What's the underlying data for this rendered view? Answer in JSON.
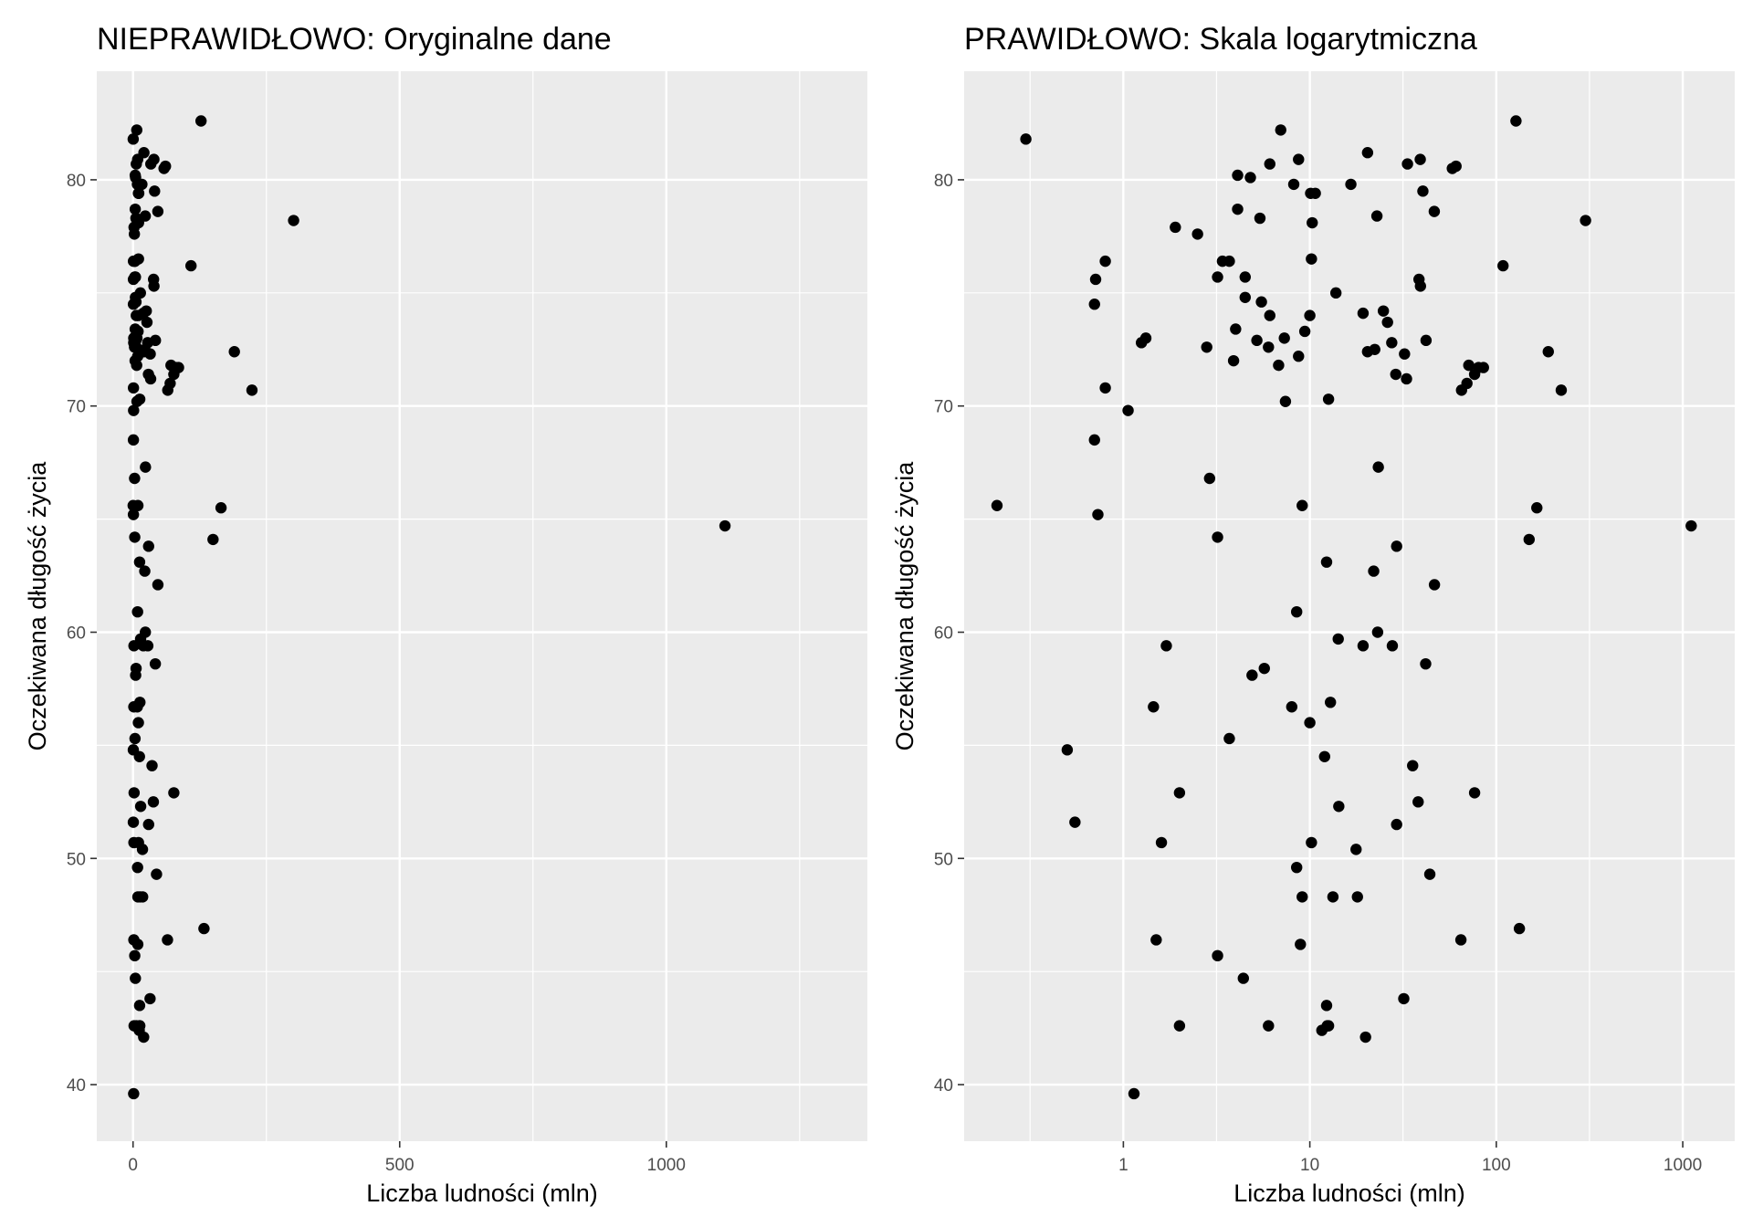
{
  "figure": {
    "charts": [
      {
        "title": "NIEPRAWIDŁOWO: Oryginalne dane",
        "xlabel": "Liczba ludności (mln)",
        "ylabel": "Oczekiwana długość życia",
        "xscale": "linear",
        "xlim": [
          -68,
          1377
        ],
        "ylim": [
          37.5,
          84.8
        ],
        "xticks": [
          0,
          500,
          1000
        ],
        "xtick_labels": [
          "0",
          "500",
          "1000"
        ],
        "xminor": [
          250,
          750,
          1250
        ],
        "yticks": [
          40,
          50,
          60,
          70,
          80
        ],
        "ytick_labels": [
          "40",
          "50",
          "60",
          "70",
          "80"
        ],
        "yminor": [
          45,
          55,
          65,
          75
        ]
      },
      {
        "title": "PRAWIDŁOWO: Skala logarytmiczna",
        "xlabel": "Liczba ludności (mln)",
        "ylabel": "Oczekiwana długość życia",
        "xscale": "log10",
        "xlim": [
          0.14,
          1900
        ],
        "ylim": [
          37.5,
          84.8
        ],
        "xticks": [
          1,
          10,
          100,
          1000
        ],
        "xtick_labels": [
          "1",
          "10",
          "100",
          "1000"
        ],
        "xminor": [
          0.316,
          3.16,
          31.6,
          316
        ],
        "yticks": [
          40,
          50,
          60,
          70,
          80
        ],
        "ytick_labels": [
          "40",
          "50",
          "60",
          "70",
          "80"
        ],
        "yminor": [
          45,
          55,
          65,
          75
        ]
      }
    ]
  },
  "chart_data": {
    "type": "scatter",
    "series": [
      {
        "name": "countries",
        "points": [
          [
            0.3,
            81.8
          ],
          [
            6.98,
            82.2
          ],
          [
            1.32,
            73.0
          ],
          [
            1110,
            64.7
          ],
          [
            12.4,
            42.6
          ],
          [
            1.14,
            39.6
          ],
          [
            6.1,
            80.7
          ],
          [
            0.21,
            65.6
          ],
          [
            20.4,
            81.2
          ],
          [
            8.2,
            79.8
          ],
          [
            0.71,
            75.6
          ],
          [
            4.1,
            80.2
          ],
          [
            8.7,
            80.9
          ],
          [
            33.4,
            80.7
          ],
          [
            39.1,
            80.9
          ],
          [
            58.1,
            80.5
          ],
          [
            60.8,
            80.6
          ],
          [
            10.7,
            79.4
          ],
          [
            16.6,
            79.8
          ],
          [
            127.5,
            82.6
          ],
          [
            301.1,
            78.2
          ],
          [
            4.1,
            78.7
          ],
          [
            5.4,
            78.3
          ],
          [
            10.3,
            78.1
          ],
          [
            46.5,
            78.6
          ],
          [
            22.9,
            78.4
          ],
          [
            10.1,
            79.4
          ],
          [
            1.9,
            77.9
          ],
          [
            40.4,
            79.5
          ],
          [
            108.7,
            76.2
          ],
          [
            3.4,
            76.4
          ],
          [
            10.2,
            76.5
          ],
          [
            4.5,
            75.7
          ],
          [
            4.8,
            80.1
          ],
          [
            2.5,
            77.6
          ],
          [
            0.8,
            76.4
          ],
          [
            3.2,
            75.7
          ],
          [
            3.7,
            76.4
          ],
          [
            39.2,
            75.3
          ],
          [
            38.5,
            75.6
          ],
          [
            0.7,
            74.5
          ],
          [
            4.5,
            74.8
          ],
          [
            5.5,
            74.6
          ],
          [
            10.0,
            74.0
          ],
          [
            13.8,
            75.0
          ],
          [
            24.8,
            74.2
          ],
          [
            26.1,
            73.7
          ],
          [
            7.3,
            73.0
          ],
          [
            4.0,
            73.4
          ],
          [
            9.4,
            73.3
          ],
          [
            6.1,
            74.0
          ],
          [
            19.3,
            74.1
          ],
          [
            2.8,
            72.6
          ],
          [
            1.25,
            72.8
          ],
          [
            42.0,
            72.9
          ],
          [
            71.2,
            71.8
          ],
          [
            190,
            72.4
          ],
          [
            5.2,
            72.9
          ],
          [
            6.0,
            72.6
          ],
          [
            8.7,
            72.2
          ],
          [
            22.3,
            72.5
          ],
          [
            32.2,
            72.3
          ],
          [
            80.3,
            71.7
          ],
          [
            85.3,
            71.7
          ],
          [
            65.1,
            70.7
          ],
          [
            69.6,
            71.0
          ],
          [
            28.9,
            71.4
          ],
          [
            33.0,
            71.2
          ],
          [
            76.5,
            71.4
          ],
          [
            223,
            70.7
          ],
          [
            20.4,
            72.4
          ],
          [
            27.5,
            72.8
          ],
          [
            3.9,
            72.0
          ],
          [
            6.8,
            71.8
          ],
          [
            12.6,
            70.3
          ],
          [
            7.4,
            70.2
          ],
          [
            1.06,
            69.8
          ],
          [
            165,
            65.5
          ],
          [
            150,
            64.1
          ],
          [
            2.9,
            66.8
          ],
          [
            23.3,
            67.3
          ],
          [
            9.1,
            65.6
          ],
          [
            0.73,
            65.2
          ],
          [
            3.2,
            64.2
          ],
          [
            12.3,
            63.1
          ],
          [
            29.2,
            63.8
          ],
          [
            22.0,
            62.7
          ],
          [
            46.6,
            62.1
          ],
          [
            8.5,
            60.9
          ],
          [
            23.1,
            60.0
          ],
          [
            14.2,
            59.7
          ],
          [
            19.3,
            59.4
          ],
          [
            27.7,
            59.4
          ],
          [
            1.7,
            59.4
          ],
          [
            41.8,
            58.6
          ],
          [
            5.7,
            58.4
          ],
          [
            4.9,
            58.1
          ],
          [
            1.45,
            56.7
          ],
          [
            8.0,
            56.7
          ],
          [
            12.9,
            56.9
          ],
          [
            10.0,
            56.0
          ],
          [
            3.7,
            55.3
          ],
          [
            0.5,
            54.8
          ],
          [
            12.0,
            54.5
          ],
          [
            35.6,
            54.1
          ],
          [
            2.0,
            52.9
          ],
          [
            76.5,
            52.9
          ],
          [
            38.1,
            52.5
          ],
          [
            14.3,
            52.3
          ],
          [
            0.55,
            51.6
          ],
          [
            29.2,
            51.5
          ],
          [
            1.6,
            50.7
          ],
          [
            10.2,
            50.7
          ],
          [
            17.7,
            50.4
          ],
          [
            8.5,
            49.6
          ],
          [
            44.0,
            49.3
          ],
          [
            9.1,
            48.3
          ],
          [
            13.3,
            48.3
          ],
          [
            18.0,
            48.3
          ],
          [
            133,
            46.9
          ],
          [
            1.5,
            46.4
          ],
          [
            64.6,
            46.4
          ],
          [
            8.9,
            46.2
          ],
          [
            3.2,
            45.7
          ],
          [
            4.4,
            44.7
          ],
          [
            31.9,
            43.8
          ],
          [
            12.3,
            43.5
          ],
          [
            12.6,
            42.6
          ],
          [
            19.9,
            42.1
          ],
          [
            11.6,
            42.4
          ],
          [
            2.0,
            42.6
          ],
          [
            6.0,
            42.6
          ],
          [
            0.8,
            70.8
          ],
          [
            0.7,
            68.5
          ]
        ]
      }
    ]
  }
}
